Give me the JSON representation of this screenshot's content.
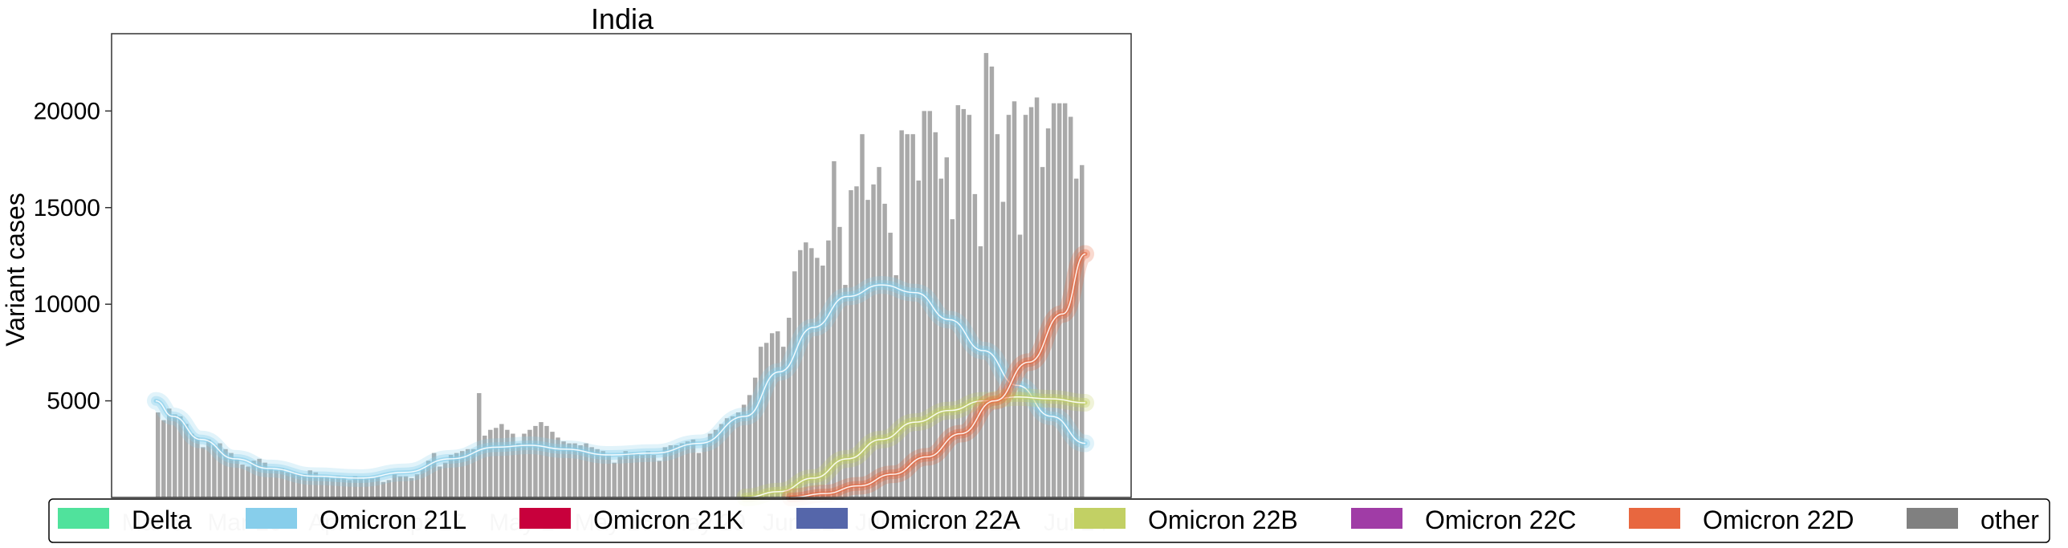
{
  "chart_data": {
    "type": "bar",
    "title": "India",
    "ylabel": "Variant cases",
    "xlabel": "",
    "ylim": [
      0,
      24000
    ],
    "yticks": [
      5000,
      10000,
      15000,
      20000
    ],
    "xticks": [
      "Mar 6",
      "Mar 20",
      "Apr 3",
      "Apr 17",
      "May 1",
      "May 15",
      "May 29",
      "Jun 12",
      "Jun 26",
      "Jul 10",
      "Jul 24"
    ],
    "bar_color": "#a9a9a9",
    "x": [
      0,
      1,
      2,
      3,
      4,
      5,
      6,
      7,
      8,
      9,
      10,
      11,
      12,
      13,
      14,
      15,
      16,
      17,
      18,
      19,
      20,
      21,
      22,
      23,
      24,
      25,
      26,
      27,
      28,
      29,
      30,
      31,
      32,
      33,
      34,
      35,
      36,
      37,
      38,
      39,
      40,
      41,
      42,
      43,
      44,
      45,
      46,
      47,
      48,
      49,
      50,
      51,
      52,
      53,
      54,
      55,
      56,
      57,
      58,
      59,
      60,
      61,
      62,
      63,
      64,
      65,
      66,
      67,
      68,
      69,
      70,
      71,
      72,
      73,
      74,
      75,
      76,
      77,
      78,
      79,
      80,
      81,
      82,
      83,
      84,
      85,
      86,
      87,
      88,
      89,
      90,
      91,
      92,
      93,
      94,
      95,
      96,
      97,
      98,
      99,
      100,
      101,
      102,
      103,
      104,
      105,
      106,
      107,
      108,
      109,
      110,
      111,
      112,
      113,
      114,
      115,
      116,
      117,
      118,
      119,
      120,
      121,
      122,
      123,
      124,
      125,
      126,
      127,
      128,
      129,
      130,
      131,
      132,
      133,
      134,
      135,
      136,
      137,
      138,
      139,
      140
    ],
    "values": [
      4400,
      4000,
      4600,
      4300,
      4200,
      3800,
      3300,
      3100,
      2600,
      3000,
      2700,
      2800,
      2500,
      2300,
      2000,
      1700,
      1600,
      1900,
      2000,
      1800,
      1500,
      1400,
      1500,
      1300,
      1300,
      1200,
      1200,
      1400,
      1300,
      1100,
      1100,
      1000,
      1100,
      1000,
      900,
      1100,
      1000,
      1000,
      1000,
      1100,
      800,
      900,
      1200,
      1100,
      1100,
      1000,
      1200,
      1500,
      1900,
      2300,
      1600,
      1800,
      2200,
      2300,
      2400,
      2500,
      2500,
      5400,
      3200,
      3500,
      3600,
      3800,
      3500,
      3300,
      2800,
      3300,
      3500,
      3700,
      3900,
      3700,
      3400,
      3100,
      2900,
      2800,
      2800,
      2700,
      2800,
      2600,
      2500,
      2400,
      2200,
      1800,
      2100,
      2400,
      2300,
      2300,
      2200,
      2400,
      2200,
      1900,
      2600,
      2700,
      2700,
      2800,
      2900,
      3000,
      2300,
      2800,
      3300,
      3500,
      3800,
      4100,
      4200,
      4400,
      4800,
      5300,
      6200,
      7800,
      8000,
      8500,
      8600,
      7800,
      9300,
      11700,
      12800,
      13200,
      12900,
      12400,
      12000,
      13300,
      17400,
      14000,
      11000,
      15900,
      16100,
      18800,
      15400,
      16200,
      17100,
      15200,
      13700,
      11500,
      19000,
      18800,
      18800,
      16400,
      20000,
      20000,
      18900,
      16500,
      17600
    ],
    "extra_values": [
      14400,
      20300,
      20100,
      19800,
      15700,
      13000,
      23000,
      22300,
      18800,
      15300,
      19800,
      20500,
      13600,
      19800,
      20200,
      20700,
      17100,
      19100,
      20400,
      20400,
      20400,
      19700,
      16500,
      17200
    ],
    "series": [
      {
        "name": "Delta",
        "color": "#50e29c",
        "fit": []
      },
      {
        "name": "Omicron 21L",
        "color": "#87ceeb",
        "fit": [
          [
            0,
            5000
          ],
          [
            3,
            4200
          ],
          [
            8,
            3000
          ],
          [
            14,
            2000
          ],
          [
            20,
            1500
          ],
          [
            28,
            1100
          ],
          [
            36,
            1000
          ],
          [
            44,
            1300
          ],
          [
            52,
            2000
          ],
          [
            60,
            2600
          ],
          [
            66,
            2700
          ],
          [
            72,
            2500
          ],
          [
            80,
            2200
          ],
          [
            88,
            2300
          ],
          [
            96,
            2800
          ],
          [
            104,
            4200
          ],
          [
            110,
            6500
          ],
          [
            116,
            8800
          ],
          [
            122,
            10400
          ],
          [
            128,
            11000
          ],
          [
            134,
            10600
          ],
          [
            140,
            9200
          ],
          [
            146,
            7600
          ],
          [
            152,
            5800
          ],
          [
            158,
            4200
          ],
          [
            164,
            2800
          ]
        ]
      },
      {
        "name": "Omicron 21K",
        "color": "#c8003c",
        "fit": []
      },
      {
        "name": "Omicron 22A",
        "color": "#5566aa",
        "fit": []
      },
      {
        "name": "Omicron 22B",
        "color": "#c2d064",
        "fit": [
          [
            104,
            0
          ],
          [
            110,
            300
          ],
          [
            116,
            1000
          ],
          [
            122,
            2000
          ],
          [
            128,
            3000
          ],
          [
            134,
            3900
          ],
          [
            140,
            4500
          ],
          [
            146,
            5000
          ],
          [
            152,
            5200
          ],
          [
            158,
            5100
          ],
          [
            164,
            4900
          ]
        ]
      },
      {
        "name": "Omicron 22C",
        "color": "#a03ca6",
        "fit": []
      },
      {
        "name": "Omicron 22D",
        "color": "#e8673f",
        "fit": [
          [
            112,
            0
          ],
          [
            118,
            200
          ],
          [
            124,
            600
          ],
          [
            130,
            1200
          ],
          [
            136,
            2100
          ],
          [
            142,
            3300
          ],
          [
            148,
            5000
          ],
          [
            154,
            7000
          ],
          [
            160,
            9500
          ],
          [
            164,
            12600
          ]
        ]
      },
      {
        "name": "other",
        "color": "#808080",
        "fit": []
      }
    ],
    "legend_position": "bottom",
    "grid": false
  },
  "legend": {
    "items": [
      {
        "label": "Delta",
        "color": "#50e29c"
      },
      {
        "label": "Omicron 21L",
        "color": "#87ceeb"
      },
      {
        "label": "Omicron 21K",
        "color": "#c8003c"
      },
      {
        "label": "Omicron 22A",
        "color": "#5566aa"
      },
      {
        "label": "Omicron 22B",
        "color": "#c2d064"
      },
      {
        "label": "Omicron 22C",
        "color": "#a03ca6"
      },
      {
        "label": "Omicron 22D",
        "color": "#e8673f"
      },
      {
        "label": "other",
        "color": "#808080"
      }
    ]
  }
}
